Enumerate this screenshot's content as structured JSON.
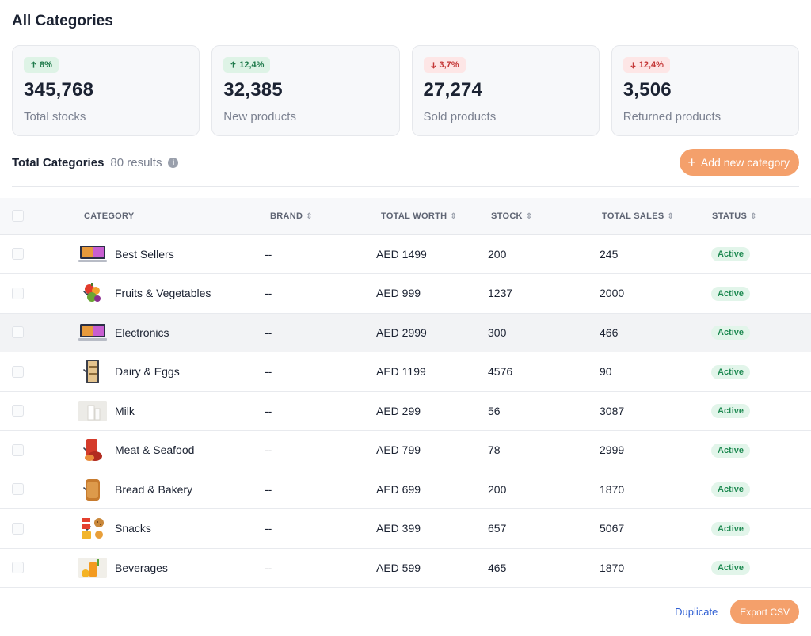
{
  "page": {
    "title": "All Categories"
  },
  "stats": [
    {
      "trend": "8%",
      "direction": "up",
      "value": "345,768",
      "label": "Total stocks"
    },
    {
      "trend": "12,4%",
      "direction": "up",
      "value": "32,385",
      "label": "New products"
    },
    {
      "trend": "3,7%",
      "direction": "down",
      "value": "27,274",
      "label": "Sold products"
    },
    {
      "trend": "12,4%",
      "direction": "down",
      "value": "3,506",
      "label": "Returned products"
    }
  ],
  "section": {
    "title": "Total Categories",
    "count": "80 results",
    "add_label": "Add new category"
  },
  "table": {
    "headers": [
      "CATEGORY",
      "BRAND",
      "TOTAL WORTH",
      "STOCK",
      "TOTAL SALES",
      "STATUS"
    ],
    "rows": [
      {
        "category": "Best Sellers",
        "brand": "--",
        "worth": "AED 1499",
        "stock": "200",
        "sales": "245",
        "status": "Active",
        "expanded": false,
        "icon": "laptop-icon"
      },
      {
        "category": "Fruits & Vegetables",
        "brand": "--",
        "worth": "AED 999",
        "stock": "1237",
        "sales": "2000",
        "status": "Active",
        "expanded": false,
        "icon": "fruits-icon"
      },
      {
        "category": "Electronics",
        "brand": "--",
        "worth": "AED 2999",
        "stock": "300",
        "sales": "466",
        "status": "Active",
        "expanded": true,
        "icon": "laptop-icon"
      },
      {
        "category": "Dairy & Eggs",
        "brand": "--",
        "worth": "AED 1199",
        "stock": "4576",
        "sales": "90",
        "status": "Active",
        "expanded": false,
        "icon": "fridge-icon"
      },
      {
        "category": "Milk",
        "brand": "--",
        "worth": "AED 299",
        "stock": "56",
        "sales": "3087",
        "status": "Active",
        "expanded": false,
        "icon": "milk-icon"
      },
      {
        "category": "Meat & Seafood",
        "brand": "--",
        "worth": "AED 799",
        "stock": "78",
        "sales": "2999",
        "status": "Active",
        "expanded": false,
        "icon": "meat-icon"
      },
      {
        "category": "Bread & Bakery",
        "brand": "--",
        "worth": "AED 699",
        "stock": "200",
        "sales": "1870",
        "status": "Active",
        "expanded": false,
        "icon": "bread-icon"
      },
      {
        "category": "Snacks",
        "brand": "--",
        "worth": "AED 399",
        "stock": "657",
        "sales": "5067",
        "status": "Active",
        "expanded": false,
        "icon": "snacks-icon"
      },
      {
        "category": "Beverages",
        "brand": "--",
        "worth": "AED 599",
        "stock": "465",
        "sales": "1870",
        "status": "Active",
        "expanded": false,
        "icon": "beverage-icon"
      }
    ]
  },
  "footer": {
    "duplicate_label": "Duplicate",
    "export_label": "Export CSV"
  },
  "colors": {
    "accent": "#f4a06b",
    "link": "#2f5fd3",
    "active_bg": "#e2f5ea",
    "active_text": "#1f8a52",
    "up_bg": "#def3e6",
    "down_bg": "#fde6e6"
  }
}
